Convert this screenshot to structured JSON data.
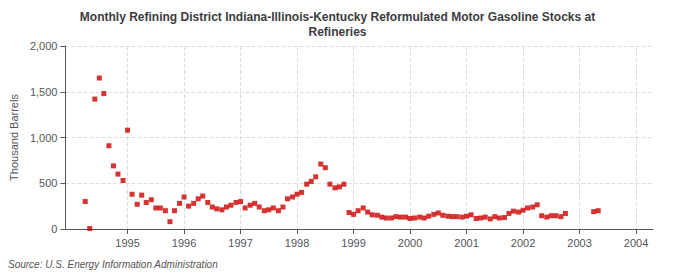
{
  "chart_data": {
    "type": "scatter",
    "title": "Monthly Refining District Indiana-Illinois-Kentucky Reformulated Motor Gasoline Stocks at\nRefineries",
    "ylabel": "Thousand Barrels",
    "annotation": "Source: U.S. Energy Information Administration",
    "color": "#cc0000",
    "marker": "square",
    "grid": true,
    "xlim": [
      1993.9,
      2004.3
    ],
    "xticks": [
      1995,
      1996,
      1997,
      1998,
      1999,
      2000,
      2001,
      2002,
      2003,
      2004
    ],
    "ylim": [
      0,
      2000
    ],
    "yticks": [
      0,
      500,
      {
        "value": 1000,
        "label": "1,000"
      },
      {
        "value": 1500,
        "label": "1,500"
      },
      {
        "value": 2000,
        "label": "2,000"
      }
    ],
    "x": [
      1994.25,
      1994.33,
      1994.42,
      1994.5,
      1994.58,
      1994.67,
      1994.75,
      1994.83,
      1994.92,
      1995.0,
      1995.08,
      1995.17,
      1995.25,
      1995.33,
      1995.42,
      1995.5,
      1995.58,
      1995.67,
      1995.75,
      1995.83,
      1995.92,
      1996.0,
      1996.08,
      1996.17,
      1996.25,
      1996.33,
      1996.42,
      1996.5,
      1996.58,
      1996.67,
      1996.75,
      1996.83,
      1996.92,
      1997.0,
      1997.08,
      1997.17,
      1997.25,
      1997.33,
      1997.42,
      1997.5,
      1997.58,
      1997.67,
      1997.75,
      1997.83,
      1997.92,
      1998.0,
      1998.08,
      1998.17,
      1998.25,
      1998.33,
      1998.42,
      1998.5,
      1998.58,
      1998.67,
      1998.75,
      1998.83,
      1998.92,
      1999.0,
      1999.08,
      1999.17,
      1999.25,
      1999.33,
      1999.42,
      1999.5,
      1999.58,
      1999.67,
      1999.75,
      1999.83,
      1999.92,
      2000.0,
      2000.08,
      2000.17,
      2000.25,
      2000.33,
      2000.42,
      2000.5,
      2000.58,
      2000.67,
      2000.75,
      2000.83,
      2000.92,
      2001.0,
      2001.08,
      2001.17,
      2001.25,
      2001.33,
      2001.42,
      2001.5,
      2001.58,
      2001.67,
      2001.75,
      2001.83,
      2001.92,
      2002.0,
      2002.08,
      2002.17,
      2002.25,
      2002.33,
      2002.42,
      2002.5,
      2002.58,
      2002.67,
      2002.75,
      2003.25,
      2003.33
    ],
    "values": [
      300,
      5,
      1420,
      1650,
      1480,
      910,
      690,
      600,
      530,
      1080,
      380,
      270,
      370,
      290,
      320,
      230,
      230,
      200,
      80,
      200,
      280,
      350,
      250,
      280,
      330,
      360,
      290,
      240,
      220,
      210,
      240,
      260,
      290,
      300,
      230,
      260,
      280,
      240,
      200,
      210,
      230,
      200,
      240,
      330,
      350,
      380,
      400,
      490,
      520,
      570,
      710,
      670,
      490,
      450,
      460,
      490,
      180,
      160,
      200,
      230,
      185,
      155,
      150,
      130,
      120,
      120,
      135,
      130,
      130,
      115,
      120,
      130,
      120,
      140,
      160,
      175,
      150,
      140,
      135,
      135,
      130,
      140,
      155,
      115,
      120,
      130,
      110,
      135,
      120,
      125,
      170,
      195,
      185,
      205,
      230,
      240,
      265,
      145,
      130,
      145,
      145,
      135,
      170,
      190,
      200
    ]
  }
}
